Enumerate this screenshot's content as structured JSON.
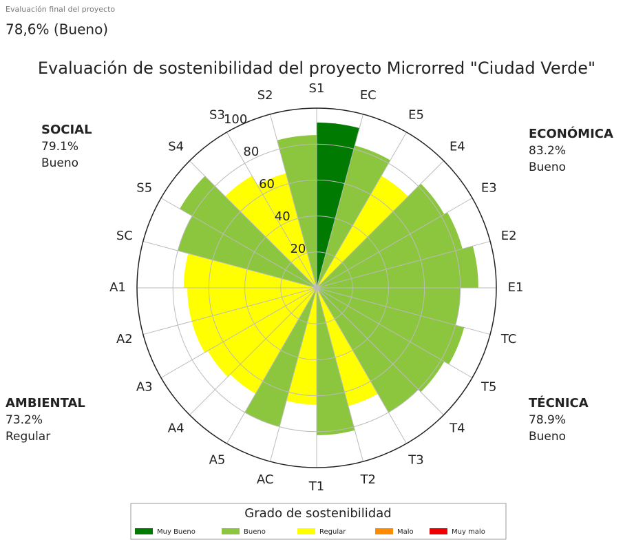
{
  "header": {
    "label": "Evaluación final del proyecto",
    "value": "78,6% (Bueno)"
  },
  "chart_data": {
    "type": "polar-bar",
    "title": "Evaluación de sostenibilidad del proyecto Microrred \"Ciudad Verde\"",
    "categories": [
      "S1",
      "EC",
      "E5",
      "E4",
      "E3",
      "E2",
      "E1",
      "TC",
      "T5",
      "T4",
      "T3",
      "T2",
      "T1",
      "AC",
      "A5",
      "A4",
      "A3",
      "A2",
      "A1",
      "SC",
      "S5",
      "S4",
      "S3",
      "S2"
    ],
    "values": [
      92,
      82,
      72,
      82,
      84,
      90,
      80,
      85,
      82,
      80,
      68,
      82,
      65,
      80,
      68,
      70,
      72,
      72,
      74,
      80,
      88,
      72,
      66,
      85
    ],
    "colors": [
      "#007a00",
      "#8cc63f",
      "#ffff00",
      "#8cc63f",
      "#8cc63f",
      "#8cc63f",
      "#8cc63f",
      "#8cc63f",
      "#8cc63f",
      "#8cc63f",
      "#ffff00",
      "#8cc63f",
      "#ffff00",
      "#8cc63f",
      "#ffff00",
      "#ffff00",
      "#ffff00",
      "#ffff00",
      "#ffff00",
      "#8cc63f",
      "#8cc63f",
      "#ffff00",
      "#ffff00",
      "#8cc63f"
    ],
    "rlim": [
      0,
      100
    ],
    "rticks": [
      20,
      40,
      60,
      80,
      100
    ],
    "grid": true,
    "annotations": [
      {
        "title": "SOCIAL",
        "value": "79.1%",
        "rating": "Bueno"
      },
      {
        "title": "ECONÓMICA",
        "value": "83.2%",
        "rating": "Bueno"
      },
      {
        "title": "AMBIENTAL",
        "value": "73.2%",
        "rating": "Regular"
      },
      {
        "title": "TÉCNICA",
        "value": "78.9%",
        "rating": "Bueno"
      }
    ],
    "legend": {
      "title": "Grado de sostenibilidad",
      "items": [
        {
          "name": "Muy Bueno",
          "color": "#007a00"
        },
        {
          "name": "Bueno",
          "color": "#8cc63f"
        },
        {
          "name": "Regular",
          "color": "#ffff00"
        },
        {
          "name": "Malo",
          "color": "#ff8c00"
        },
        {
          "name": "Muy malo",
          "color": "#ee0000"
        }
      ]
    }
  }
}
